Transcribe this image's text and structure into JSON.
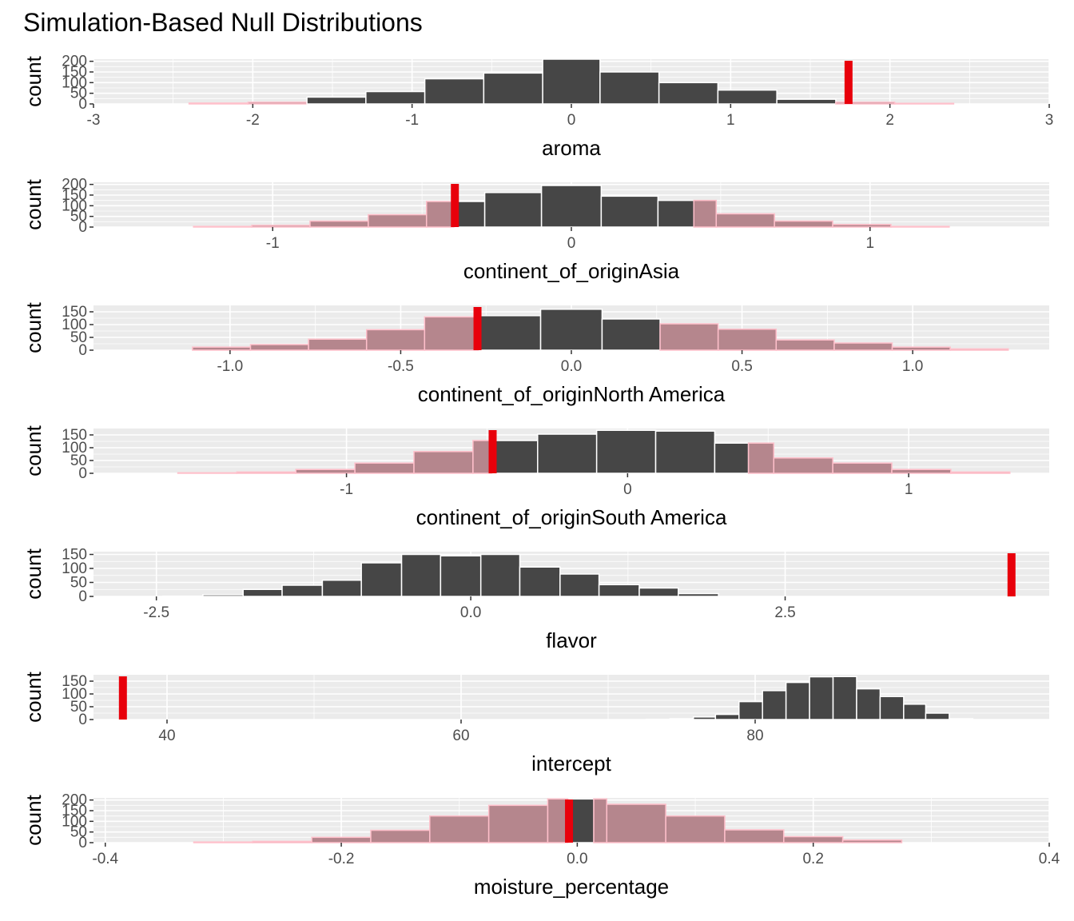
{
  "title": "Simulation-Based Null Distributions",
  "colors": {
    "panel_bg": "#ebebeb",
    "grid": "#ffffff",
    "bar_fill": "#464646",
    "shade_fill": "#b5868d",
    "shade_edge": "#ffc0cb",
    "observed_line": "#e8000b"
  },
  "chart_data": {
    "type": "bar",
    "title": "Simulation-Based Null Distributions",
    "panels": [
      {
        "name": "aroma",
        "xlabel": "aroma",
        "ylabel": "count",
        "xlim": [
          -3,
          3
        ],
        "ylim": [
          0,
          210
        ],
        "xticks": [
          -3,
          -2,
          -1,
          0,
          1,
          2,
          3
        ],
        "xtick_labels": [
          "-3",
          "-2",
          "-1",
          "0",
          "1",
          "2",
          "3"
        ],
        "yticks": [
          0,
          50,
          100,
          150,
          200
        ],
        "ytick_labels": [
          "0",
          "50",
          "100",
          "150",
          "200"
        ],
        "bins": [
          {
            "x0": -2.4,
            "x1": -2.03,
            "value": 4,
            "shaded": true
          },
          {
            "x0": -2.03,
            "x1": -1.66,
            "value": 8,
            "shaded": true
          },
          {
            "x0": -1.66,
            "x1": -1.29,
            "value": 32,
            "shaded": false
          },
          {
            "x0": -1.29,
            "x1": -0.92,
            "value": 58,
            "shaded": false
          },
          {
            "x0": -0.92,
            "x1": -0.55,
            "value": 118,
            "shaded": false
          },
          {
            "x0": -0.55,
            "x1": -0.18,
            "value": 145,
            "shaded": false
          },
          {
            "x0": -0.18,
            "x1": 0.18,
            "value": 210,
            "shaded": false
          },
          {
            "x0": 0.18,
            "x1": 0.55,
            "value": 150,
            "shaded": false
          },
          {
            "x0": 0.55,
            "x1": 0.92,
            "value": 100,
            "shaded": false
          },
          {
            "x0": 0.92,
            "x1": 1.29,
            "value": 65,
            "shaded": false
          },
          {
            "x0": 1.29,
            "x1": 1.66,
            "value": 22,
            "shaded": false
          },
          {
            "x0": 1.66,
            "x1": 2.03,
            "value": 8,
            "shaded": true
          },
          {
            "x0": 2.03,
            "x1": 2.4,
            "value": 3,
            "shaded": true
          }
        ],
        "observed": 1.74
      },
      {
        "name": "continent_of_originAsia",
        "xlabel": "continent_of_originAsia",
        "ylabel": "count",
        "xlim": [
          -1.6,
          1.6
        ],
        "ylim": [
          0,
          210
        ],
        "xticks": [
          -1,
          0,
          1
        ],
        "xtick_labels": [
          "-1",
          "0",
          "1"
        ],
        "yticks": [
          0,
          50,
          100,
          150,
          200
        ],
        "ytick_labels": [
          "0",
          "50",
          "100",
          "150",
          "200"
        ],
        "bins": [
          {
            "x0": -1.265,
            "x1": -1.07,
            "value": 3,
            "shaded": true
          },
          {
            "x0": -1.07,
            "x1": -0.875,
            "value": 8,
            "shaded": true
          },
          {
            "x0": -0.875,
            "x1": -0.68,
            "value": 28,
            "shaded": true
          },
          {
            "x0": -0.68,
            "x1": -0.485,
            "value": 58,
            "shaded": true
          },
          {
            "x0": -0.485,
            "x1": -0.39,
            "value": 120,
            "shaded": true
          },
          {
            "x0": -0.39,
            "x1": -0.29,
            "value": 120,
            "shaded": false
          },
          {
            "x0": -0.29,
            "x1": -0.1,
            "value": 162,
            "shaded": false
          },
          {
            "x0": -0.1,
            "x1": 0.1,
            "value": 195,
            "shaded": false
          },
          {
            "x0": 0.1,
            "x1": 0.29,
            "value": 145,
            "shaded": false
          },
          {
            "x0": 0.29,
            "x1": 0.41,
            "value": 125,
            "shaded": false
          },
          {
            "x0": 0.41,
            "x1": 0.485,
            "value": 125,
            "shaded": true
          },
          {
            "x0": 0.485,
            "x1": 0.68,
            "value": 62,
            "shaded": true
          },
          {
            "x0": 0.68,
            "x1": 0.875,
            "value": 28,
            "shaded": true
          },
          {
            "x0": 0.875,
            "x1": 1.07,
            "value": 12,
            "shaded": true
          },
          {
            "x0": 1.07,
            "x1": 1.265,
            "value": 3,
            "shaded": true
          }
        ],
        "observed": -0.39
      },
      {
        "name": "continent_of_originNorth America",
        "xlabel": "continent_of_originNorth America",
        "ylabel": "count",
        "xlim": [
          -1.4,
          1.4
        ],
        "ylim": [
          0,
          175
        ],
        "xticks": [
          -1.0,
          -0.5,
          0.0,
          0.5,
          1.0
        ],
        "xtick_labels": [
          "-1.0",
          "-0.5",
          "0.0",
          "0.5",
          "1.0"
        ],
        "yticks": [
          0,
          50,
          100,
          150
        ],
        "ytick_labels": [
          "0",
          "50",
          "100",
          "150"
        ],
        "bins": [
          {
            "x0": -1.11,
            "x1": -0.94,
            "value": 12,
            "shaded": true
          },
          {
            "x0": -0.94,
            "x1": -0.77,
            "value": 22,
            "shaded": true
          },
          {
            "x0": -0.77,
            "x1": -0.6,
            "value": 43,
            "shaded": true
          },
          {
            "x0": -0.6,
            "x1": -0.43,
            "value": 80,
            "shaded": true
          },
          {
            "x0": -0.43,
            "x1": -0.27,
            "value": 130,
            "shaded": true
          },
          {
            "x0": -0.27,
            "x1": -0.09,
            "value": 135,
            "shaded": false
          },
          {
            "x0": -0.09,
            "x1": 0.09,
            "value": 160,
            "shaded": false
          },
          {
            "x0": 0.09,
            "x1": 0.26,
            "value": 122,
            "shaded": false
          },
          {
            "x0": 0.26,
            "x1": 0.43,
            "value": 103,
            "shaded": true
          },
          {
            "x0": 0.43,
            "x1": 0.6,
            "value": 82,
            "shaded": true
          },
          {
            "x0": 0.6,
            "x1": 0.77,
            "value": 40,
            "shaded": true
          },
          {
            "x0": 0.77,
            "x1": 0.94,
            "value": 28,
            "shaded": true
          },
          {
            "x0": 0.94,
            "x1": 1.11,
            "value": 12,
            "shaded": true
          },
          {
            "x0": 1.11,
            "x1": 1.28,
            "value": 5,
            "shaded": true
          }
        ],
        "observed": -0.275
      },
      {
        "name": "continent_of_originSouth America",
        "xlabel": "continent_of_originSouth America",
        "ylabel": "count",
        "xlim": [
          -1.9,
          1.5
        ],
        "ylim": [
          0,
          175
        ],
        "xticks": [
          -1,
          0,
          1
        ],
        "xtick_labels": [
          "-1",
          "0",
          "1"
        ],
        "yticks": [
          0,
          50,
          100,
          150
        ],
        "ytick_labels": [
          "0",
          "50",
          "100",
          "150"
        ],
        "bins": [
          {
            "x0": -1.6,
            "x1": -1.39,
            "value": 2,
            "shaded": true
          },
          {
            "x0": -1.39,
            "x1": -1.18,
            "value": 5,
            "shaded": true
          },
          {
            "x0": -1.18,
            "x1": -0.97,
            "value": 15,
            "shaded": true
          },
          {
            "x0": -0.97,
            "x1": -0.76,
            "value": 40,
            "shaded": true
          },
          {
            "x0": -0.76,
            "x1": -0.55,
            "value": 85,
            "shaded": true
          },
          {
            "x0": -0.55,
            "x1": -0.48,
            "value": 128,
            "shaded": true
          },
          {
            "x0": -0.48,
            "x1": -0.32,
            "value": 128,
            "shaded": false
          },
          {
            "x0": -0.32,
            "x1": -0.11,
            "value": 153,
            "shaded": false
          },
          {
            "x0": -0.11,
            "x1": 0.1,
            "value": 168,
            "shaded": false
          },
          {
            "x0": 0.1,
            "x1": 0.31,
            "value": 165,
            "shaded": false
          },
          {
            "x0": 0.31,
            "x1": 0.43,
            "value": 118,
            "shaded": false
          },
          {
            "x0": 0.43,
            "x1": 0.52,
            "value": 118,
            "shaded": true
          },
          {
            "x0": 0.52,
            "x1": 0.73,
            "value": 60,
            "shaded": true
          },
          {
            "x0": 0.73,
            "x1": 0.94,
            "value": 40,
            "shaded": true
          },
          {
            "x0": 0.94,
            "x1": 1.15,
            "value": 15,
            "shaded": true
          },
          {
            "x0": 1.15,
            "x1": 1.36,
            "value": 5,
            "shaded": true
          }
        ],
        "observed": -0.48
      },
      {
        "name": "flavor",
        "xlabel": "flavor",
        "ylabel": "count",
        "xlim": [
          -3.0,
          4.6
        ],
        "ylim": [
          0,
          160
        ],
        "xticks": [
          -2.5,
          0.0,
          2.5
        ],
        "xtick_labels": [
          "-2.5",
          "0.0",
          "2.5"
        ],
        "yticks": [
          0,
          50,
          100,
          150
        ],
        "ytick_labels": [
          "0",
          "50",
          "100",
          "150"
        ],
        "bins": [
          {
            "x0": -2.45,
            "x1": -2.13,
            "value": 1,
            "shaded": false
          },
          {
            "x0": -2.13,
            "x1": -1.81,
            "value": 6,
            "shaded": false
          },
          {
            "x0": -1.81,
            "x1": -1.5,
            "value": 25,
            "shaded": false
          },
          {
            "x0": -1.5,
            "x1": -1.18,
            "value": 40,
            "shaded": false
          },
          {
            "x0": -1.18,
            "x1": -0.87,
            "value": 58,
            "shaded": false
          },
          {
            "x0": -0.87,
            "x1": -0.55,
            "value": 120,
            "shaded": false
          },
          {
            "x0": -0.55,
            "x1": -0.24,
            "value": 150,
            "shaded": false
          },
          {
            "x0": -0.24,
            "x1": 0.08,
            "value": 145,
            "shaded": false
          },
          {
            "x0": 0.08,
            "x1": 0.39,
            "value": 150,
            "shaded": false
          },
          {
            "x0": 0.39,
            "x1": 0.71,
            "value": 105,
            "shaded": false
          },
          {
            "x0": 0.71,
            "x1": 1.02,
            "value": 80,
            "shaded": false
          },
          {
            "x0": 1.02,
            "x1": 1.34,
            "value": 42,
            "shaded": false
          },
          {
            "x0": 1.34,
            "x1": 1.65,
            "value": 30,
            "shaded": false
          },
          {
            "x0": 1.65,
            "x1": 1.97,
            "value": 10,
            "shaded": false
          }
        ],
        "observed": 4.3
      },
      {
        "name": "intercept",
        "xlabel": "intercept",
        "ylabel": "count",
        "xlim": [
          35,
          100
        ],
        "ylim": [
          0,
          175
        ],
        "xticks": [
          40,
          60,
          80
        ],
        "xtick_labels": [
          "40",
          "60",
          "80"
        ],
        "yticks": [
          0,
          50,
          100,
          150
        ],
        "ytick_labels": [
          "0",
          "50",
          "100",
          "150"
        ],
        "bins": [
          {
            "x0": 72.6,
            "x1": 74.2,
            "value": 1,
            "shaded": false
          },
          {
            "x0": 74.2,
            "x1": 75.8,
            "value": 3,
            "shaded": false
          },
          {
            "x0": 75.8,
            "x1": 77.3,
            "value": 10,
            "shaded": false
          },
          {
            "x0": 77.3,
            "x1": 78.9,
            "value": 20,
            "shaded": false
          },
          {
            "x0": 78.9,
            "x1": 80.5,
            "value": 70,
            "shaded": false
          },
          {
            "x0": 80.5,
            "x1": 82.1,
            "value": 113,
            "shaded": false
          },
          {
            "x0": 82.1,
            "x1": 83.7,
            "value": 145,
            "shaded": false
          },
          {
            "x0": 83.7,
            "x1": 85.3,
            "value": 167,
            "shaded": false
          },
          {
            "x0": 85.3,
            "x1": 86.9,
            "value": 168,
            "shaded": false
          },
          {
            "x0": 86.9,
            "x1": 88.5,
            "value": 120,
            "shaded": false
          },
          {
            "x0": 88.5,
            "x1": 90.1,
            "value": 90,
            "shaded": false
          },
          {
            "x0": 90.1,
            "x1": 91.6,
            "value": 60,
            "shaded": false
          },
          {
            "x0": 91.6,
            "x1": 93.2,
            "value": 25,
            "shaded": false
          },
          {
            "x0": 93.2,
            "x1": 94.8,
            "value": 3,
            "shaded": false
          }
        ],
        "observed": 37
      },
      {
        "name": "moisture_percentage",
        "xlabel": "moisture_percentage",
        "ylabel": "count",
        "xlim": [
          -0.41,
          0.4
        ],
        "ylim": [
          0,
          210
        ],
        "xticks": [
          -0.4,
          -0.2,
          0.0,
          0.2,
          0.4
        ],
        "xtick_labels": [
          "-0.4",
          "-0.2",
          "0.0",
          "0.2",
          "0.4"
        ],
        "yticks": [
          0,
          50,
          100,
          150,
          200
        ],
        "ytick_labels": [
          "0",
          "50",
          "100",
          "150",
          "200"
        ],
        "bins": [
          {
            "x0": -0.325,
            "x1": -0.275,
            "value": 3,
            "shaded": true
          },
          {
            "x0": -0.275,
            "x1": -0.225,
            "value": 6,
            "shaded": true
          },
          {
            "x0": -0.225,
            "x1": -0.175,
            "value": 25,
            "shaded": true
          },
          {
            "x0": -0.175,
            "x1": -0.125,
            "value": 58,
            "shaded": true
          },
          {
            "x0": -0.125,
            "x1": -0.075,
            "value": 125,
            "shaded": true
          },
          {
            "x0": -0.075,
            "x1": -0.025,
            "value": 175,
            "shaded": true
          },
          {
            "x0": -0.025,
            "x1": -0.007,
            "value": 205,
            "shaded": true
          },
          {
            "x0": -0.007,
            "x1": 0.014,
            "value": 205,
            "shaded": false
          },
          {
            "x0": 0.014,
            "x1": 0.025,
            "value": 205,
            "shaded": true
          },
          {
            "x0": 0.025,
            "x1": 0.075,
            "value": 180,
            "shaded": true
          },
          {
            "x0": 0.075,
            "x1": 0.125,
            "value": 125,
            "shaded": true
          },
          {
            "x0": 0.125,
            "x1": 0.175,
            "value": 60,
            "shaded": true
          },
          {
            "x0": 0.175,
            "x1": 0.225,
            "value": 28,
            "shaded": true
          },
          {
            "x0": 0.225,
            "x1": 0.275,
            "value": 12,
            "shaded": true
          }
        ],
        "observed": -0.007
      }
    ]
  }
}
